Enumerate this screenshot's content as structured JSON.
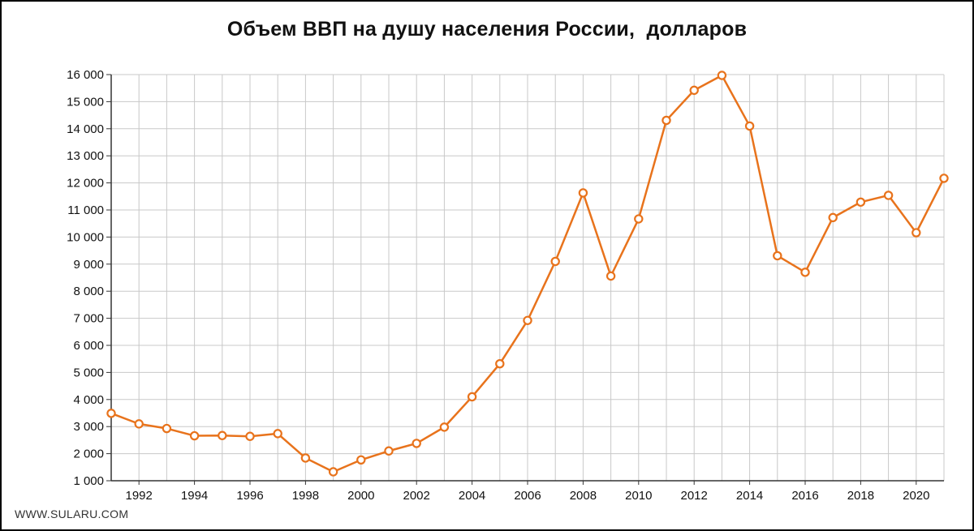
{
  "chart_data": {
    "type": "line",
    "title": "Объем ВВП на душу населения России,  долларов",
    "xlabel": "",
    "ylabel": "",
    "x": [
      1991,
      1992,
      1993,
      1994,
      1995,
      1996,
      1997,
      1998,
      1999,
      2000,
      2001,
      2002,
      2003,
      2004,
      2005,
      2006,
      2007,
      2008,
      2009,
      2010,
      2011,
      2012,
      2013,
      2014,
      2015,
      2016,
      2017,
      2018,
      2019,
      2020,
      2021
    ],
    "series": [
      {
        "name": "",
        "values": [
          3490,
          3100,
          2930,
          2660,
          2670,
          2640,
          2740,
          1840,
          1330,
          1770,
          2100,
          2380,
          2980,
          4100,
          5320,
          6920,
          9100,
          11630,
          8560,
          10670,
          14310,
          15420,
          15970,
          14100,
          9310,
          8700,
          10720,
          11290,
          11540,
          10160,
          12170
        ],
        "color": "#e8731c"
      }
    ],
    "xlim": [
      1991,
      2021
    ],
    "ylim": [
      1000,
      16000
    ],
    "x_ticks": [
      "1992",
      "1994",
      "1996",
      "1998",
      "2000",
      "2002",
      "2004",
      "2006",
      "2008",
      "2010",
      "2012",
      "2014",
      "2016",
      "2018",
      "2020"
    ],
    "y_ticks": [
      "1 000",
      "2 000",
      "3 000",
      "4 000",
      "5 000",
      "6 000",
      "7 000",
      "8 000",
      "9 000",
      "10 000",
      "11 000",
      "12 000",
      "13 000",
      "14 000",
      "15 000",
      "16 000"
    ],
    "grid": true,
    "legend": "none"
  },
  "watermark": "WWW.SULARU.COM",
  "colors": {
    "line": "#e8731c",
    "grid": "#c8c8c8",
    "axis": "#333333",
    "marker_fill": "#ffffff"
  }
}
